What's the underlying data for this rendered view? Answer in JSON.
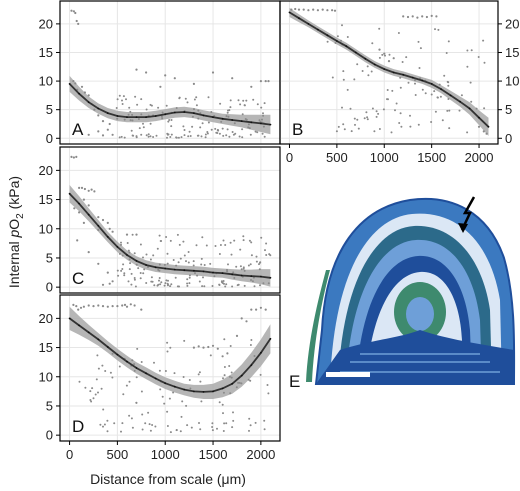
{
  "figure": {
    "ylabel_prefix": "Internal ",
    "ylabel_symbol": "p",
    "ylabel_main": "O",
    "ylabel_sub": "2",
    "ylabel_unit": " (kPa)",
    "xlabel": "Distance from scale (μm)"
  },
  "colors": {
    "fit_line": "#333333",
    "confidence_band": "#a9a9a9",
    "points": "#8a8a8a",
    "grid": "#e6e6e6",
    "frame": "#000000"
  },
  "chart_data": [
    {
      "panel": "A",
      "type": "scatter",
      "xlim": [
        -100,
        2200
      ],
      "ylim": [
        -1,
        24
      ],
      "y_ticks": [
        "0",
        "5",
        "10",
        "15",
        "20"
      ],
      "x_ticks": [],
      "ytick_side": "left",
      "grid": true,
      "fit": [
        [
          0,
          9.5
        ],
        [
          100,
          7.8
        ],
        [
          200,
          6.3
        ],
        [
          300,
          5.2
        ],
        [
          400,
          4.4
        ],
        [
          500,
          3.9
        ],
        [
          600,
          3.7
        ],
        [
          700,
          3.7
        ],
        [
          800,
          3.7
        ],
        [
          900,
          3.9
        ],
        [
          1000,
          4.2
        ],
        [
          1100,
          4.5
        ],
        [
          1200,
          4.6
        ],
        [
          1300,
          4.4
        ],
        [
          1400,
          4.0
        ],
        [
          1500,
          3.7
        ],
        [
          1600,
          3.4
        ],
        [
          1700,
          3.2
        ],
        [
          1800,
          3.0
        ],
        [
          1900,
          2.8
        ],
        [
          2000,
          2.6
        ],
        [
          2100,
          2.4
        ]
      ],
      "band_width": [
        1.4,
        1.2,
        1.0,
        0.9,
        0.9,
        0.9,
        0.9,
        0.9,
        0.9,
        0.9,
        0.9,
        0.9,
        0.9,
        0.9,
        0.9,
        0.9,
        0.9,
        1.0,
        1.1,
        1.3,
        1.5,
        1.7
      ],
      "cluster": {
        "x0": 480,
        "x1": 2050,
        "ymin": 0.1,
        "ymax": 7.5,
        "n": 160
      },
      "points": [
        [
          20,
          22.3
        ],
        [
          45,
          22.2
        ],
        [
          60,
          21.9
        ],
        [
          75,
          20.5
        ],
        [
          90,
          20.0
        ],
        [
          40,
          10.0
        ],
        [
          60,
          9.6
        ],
        [
          80,
          8.5
        ],
        [
          130,
          9.0
        ],
        [
          160,
          8.0
        ],
        [
          200,
          7.5
        ],
        [
          230,
          6.0
        ],
        [
          260,
          5.0
        ],
        [
          300,
          4.0
        ],
        [
          350,
          3.0
        ],
        [
          400,
          1.5
        ],
        [
          420,
          2.5
        ],
        [
          450,
          0.6
        ],
        [
          350,
          0.5
        ],
        [
          700,
          12.0
        ],
        [
          800,
          11.5
        ],
        [
          1000,
          11.0
        ],
        [
          950,
          9.0
        ],
        [
          1100,
          10.5
        ],
        [
          1300,
          9.5
        ],
        [
          1500,
          11.5
        ],
        [
          1700,
          10.5
        ],
        [
          1900,
          9.0
        ],
        [
          2000,
          10.0
        ],
        [
          2050,
          10.0
        ],
        [
          2080,
          10.0
        ],
        [
          200,
          0.6
        ],
        [
          300,
          1.2
        ]
      ]
    },
    {
      "panel": "B",
      "type": "scatter",
      "xlim": [
        -100,
        2200
      ],
      "ylim": [
        -1,
        24
      ],
      "y_ticks": [
        "0",
        "5",
        "10",
        "15",
        "20"
      ],
      "x_ticks": [
        "0",
        "500",
        "1000",
        "1500",
        "2000"
      ],
      "ytick_side": "right",
      "grid": true,
      "fit": [
        [
          0,
          22.0
        ],
        [
          100,
          21.0
        ],
        [
          200,
          20.0
        ],
        [
          300,
          19.0
        ],
        [
          400,
          18.0
        ],
        [
          500,
          17.0
        ],
        [
          600,
          16.1
        ],
        [
          700,
          15.0
        ],
        [
          800,
          13.9
        ],
        [
          900,
          12.9
        ],
        [
          1000,
          12.1
        ],
        [
          1100,
          11.5
        ],
        [
          1200,
          11.1
        ],
        [
          1300,
          10.6
        ],
        [
          1400,
          10.1
        ],
        [
          1500,
          9.5
        ],
        [
          1600,
          8.6
        ],
        [
          1700,
          7.5
        ],
        [
          1800,
          6.4
        ],
        [
          1900,
          5.2
        ],
        [
          2000,
          3.6
        ],
        [
          2100,
          2.0
        ]
      ],
      "band_width": [
        0.8,
        0.7,
        0.6,
        0.6,
        0.6,
        0.6,
        0.6,
        0.6,
        0.6,
        0.6,
        0.6,
        0.6,
        0.6,
        0.6,
        0.6,
        0.7,
        0.7,
        0.8,
        0.9,
        1.1,
        1.3,
        1.6
      ],
      "cluster": {
        "x0": 400,
        "x1": 2100,
        "ymin": 1.0,
        "ymax": 20.0,
        "n": 110
      },
      "points": [
        [
          20,
          22.5
        ],
        [
          60,
          22.6
        ],
        [
          100,
          22.5
        ],
        [
          150,
          22.5
        ],
        [
          200,
          22.4
        ],
        [
          250,
          22.5
        ],
        [
          300,
          22.4
        ],
        [
          350,
          22.5
        ],
        [
          400,
          22.4
        ],
        [
          450,
          22.4
        ],
        [
          480,
          22.3
        ],
        [
          1200,
          21.3
        ],
        [
          1250,
          21.2
        ],
        [
          1300,
          21.3
        ],
        [
          1350,
          21.1
        ],
        [
          1400,
          21.3
        ],
        [
          1450,
          21.2
        ],
        [
          1500,
          21.4
        ],
        [
          1550,
          21.3
        ],
        [
          950,
          15.5
        ],
        [
          1000,
          14.8
        ],
        [
          1050,
          13.5
        ],
        [
          1100,
          14.0
        ],
        [
          2000,
          2.0
        ],
        [
          2050,
          1.2
        ],
        [
          2080,
          0.8
        ]
      ]
    },
    {
      "panel": "C",
      "type": "scatter",
      "xlim": [
        -100,
        2200
      ],
      "ylim": [
        -1,
        24
      ],
      "y_ticks": [
        "0",
        "5",
        "10",
        "15",
        "20"
      ],
      "x_ticks": [],
      "ytick_side": "left",
      "grid": true,
      "fit": [
        [
          0,
          16.0
        ],
        [
          100,
          14.3
        ],
        [
          200,
          12.4
        ],
        [
          300,
          10.5
        ],
        [
          400,
          8.6
        ],
        [
          500,
          6.9
        ],
        [
          600,
          5.5
        ],
        [
          700,
          4.5
        ],
        [
          800,
          3.8
        ],
        [
          900,
          3.4
        ],
        [
          1000,
          3.2
        ],
        [
          1100,
          3.0
        ],
        [
          1200,
          2.9
        ],
        [
          1300,
          2.8
        ],
        [
          1400,
          2.7
        ],
        [
          1500,
          2.5
        ],
        [
          1600,
          2.4
        ],
        [
          1700,
          2.2
        ],
        [
          1800,
          2.0
        ],
        [
          1900,
          1.9
        ],
        [
          2000,
          1.8
        ],
        [
          2100,
          1.6
        ]
      ],
      "band_width": [
        1.5,
        1.3,
        1.1,
        1.0,
        0.9,
        0.9,
        0.8,
        0.8,
        0.8,
        0.8,
        0.8,
        0.8,
        0.8,
        0.8,
        0.8,
        0.8,
        0.8,
        0.9,
        1.0,
        1.1,
        1.3,
        1.5
      ],
      "cluster": {
        "x0": 500,
        "x1": 2100,
        "ymin": 0.1,
        "ymax": 9.0,
        "n": 170
      },
      "points": [
        [
          20,
          22.3
        ],
        [
          45,
          22.2
        ],
        [
          70,
          22.3
        ],
        [
          100,
          17.0
        ],
        [
          130,
          17.0
        ],
        [
          160,
          16.8
        ],
        [
          200,
          16.5
        ],
        [
          230,
          16.7
        ],
        [
          260,
          16.4
        ],
        [
          150,
          15.0
        ],
        [
          200,
          14.0
        ],
        [
          300,
          12.0
        ],
        [
          350,
          11.5
        ],
        [
          400,
          11.0
        ],
        [
          420,
          10.0
        ],
        [
          450,
          9.5
        ],
        [
          300,
          9.8
        ],
        [
          600,
          9.0
        ],
        [
          700,
          9.0
        ],
        [
          50,
          13.5
        ],
        [
          100,
          12.8
        ],
        [
          150,
          11.0
        ],
        [
          80,
          8.0
        ],
        [
          200,
          6.0
        ],
        [
          300,
          4.0
        ],
        [
          400,
          2.5
        ],
        [
          450,
          1.0
        ],
        [
          350,
          0.4
        ],
        [
          420,
          0.6
        ]
      ]
    },
    {
      "panel": "D",
      "type": "scatter",
      "xlim": [
        -100,
        2200
      ],
      "ylim": [
        -1,
        24
      ],
      "y_ticks": [
        "0",
        "5",
        "10",
        "15",
        "20"
      ],
      "x_ticks": [
        "0",
        "500",
        "1000",
        "1500",
        "2000"
      ],
      "ytick_side": "left",
      "grid": true,
      "fit": [
        [
          0,
          20.0
        ],
        [
          100,
          18.8
        ],
        [
          200,
          17.6
        ],
        [
          300,
          16.4
        ],
        [
          400,
          15.1
        ],
        [
          500,
          13.8
        ],
        [
          600,
          12.6
        ],
        [
          700,
          11.5
        ],
        [
          800,
          10.6
        ],
        [
          900,
          9.7
        ],
        [
          1000,
          8.9
        ],
        [
          1100,
          8.3
        ],
        [
          1200,
          7.8
        ],
        [
          1300,
          7.5
        ],
        [
          1400,
          7.4
        ],
        [
          1500,
          7.5
        ],
        [
          1600,
          8.0
        ],
        [
          1700,
          8.8
        ],
        [
          1800,
          10.2
        ],
        [
          1900,
          12.0
        ],
        [
          2000,
          14.1
        ],
        [
          2100,
          16.5
        ]
      ],
      "band_width": [
        2.0,
        1.6,
        1.3,
        1.1,
        1.0,
        1.0,
        1.0,
        1.0,
        1.0,
        1.0,
        1.0,
        1.0,
        1.0,
        1.1,
        1.2,
        1.3,
        1.5,
        1.7,
        1.9,
        2.1,
        2.3,
        2.5
      ],
      "cluster": {
        "x0": 100,
        "x1": 2080,
        "ymin": 0.5,
        "ymax": 16.5,
        "n": 130
      },
      "points": [
        [
          40,
          22.3
        ],
        [
          70,
          22.1
        ],
        [
          90,
          21.5
        ],
        [
          120,
          21.8
        ],
        [
          150,
          22.0
        ],
        [
          200,
          22.2
        ],
        [
          250,
          22.1
        ],
        [
          300,
          22.2
        ],
        [
          350,
          22.1
        ],
        [
          400,
          22.0
        ],
        [
          450,
          22.1
        ],
        [
          500,
          22.1
        ],
        [
          550,
          22.2
        ],
        [
          580,
          22.3
        ],
        [
          600,
          22.0
        ],
        [
          640,
          22.4
        ],
        [
          680,
          22.2
        ],
        [
          750,
          21.5
        ],
        [
          1300,
          15.0
        ],
        [
          1350,
          15.2
        ],
        [
          1400,
          15.0
        ],
        [
          1450,
          15.1
        ],
        [
          1500,
          15.3
        ],
        [
          1550,
          14.8
        ],
        [
          1600,
          13.5
        ],
        [
          1650,
          14.0
        ],
        [
          1750,
          17.0
        ],
        [
          1800,
          20.0
        ],
        [
          1850,
          19.5
        ],
        [
          1900,
          21.5
        ],
        [
          1950,
          21.5
        ],
        [
          2000,
          21.8
        ],
        [
          2050,
          21.5
        ]
      ]
    }
  ],
  "micrograph": {
    "label": "E",
    "colors": [
      "#1f4e9b",
      "#3b79c0",
      "#6e9fd8",
      "#2c6a8a",
      "#3e8a6e",
      "#dbe7f5"
    ]
  }
}
